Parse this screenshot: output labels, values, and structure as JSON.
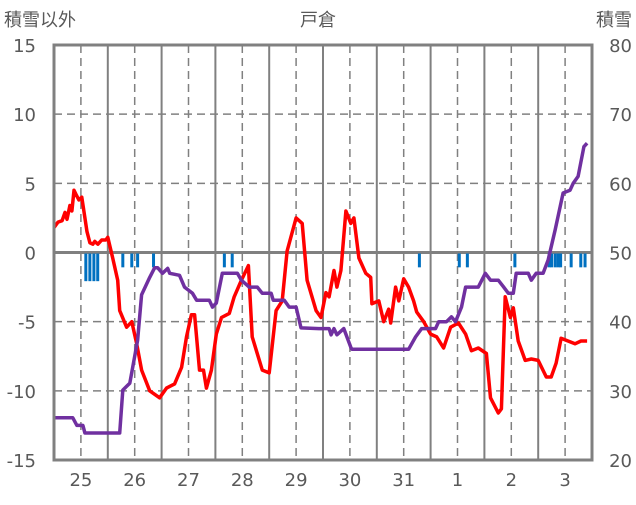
{
  "chart_data": {
    "type": "line",
    "title": "戸倉",
    "ylabel_left": "積雪以外",
    "ylabel_right": "積雪",
    "ylim_left": [
      -15,
      15
    ],
    "yticks_left": [
      "15",
      "10",
      "5",
      "0",
      "-5",
      "-10",
      "-15"
    ],
    "ylim_right": [
      20,
      80
    ],
    "yticks_right": [
      "80",
      "70",
      "60",
      "50",
      "40",
      "30",
      "20"
    ],
    "xlim_hours": [
      0,
      240
    ],
    "x_tick_labels": [
      "25",
      "26",
      "27",
      "28",
      "29",
      "30",
      "31",
      "1",
      "2",
      "3"
    ],
    "grid": true,
    "colors": {
      "temperature": "#ff0000",
      "snow_depth": "#7030a0",
      "snowfall": "#0070c0",
      "grid": "#808080"
    },
    "series": [
      {
        "name": "temperature",
        "axis": "left",
        "points": [
          [
            0,
            1.8
          ],
          [
            1.8,
            2.2
          ],
          [
            3.6,
            2.3
          ],
          [
            4.9,
            2.9
          ],
          [
            5.8,
            2.4
          ],
          [
            7.1,
            3.4
          ],
          [
            8,
            3.0
          ],
          [
            8.9,
            4.5
          ],
          [
            9.8,
            4.2
          ],
          [
            11.1,
            3.8
          ],
          [
            12.4,
            4.0
          ],
          [
            14.7,
            1.5
          ],
          [
            16,
            0.7
          ],
          [
            17.3,
            0.6
          ],
          [
            18.2,
            0.8
          ],
          [
            19.6,
            0.6
          ],
          [
            21.3,
            0.9
          ],
          [
            23.1,
            0.9
          ],
          [
            24,
            1.1
          ],
          [
            26.2,
            -0.4
          ],
          [
            28.4,
            -2
          ],
          [
            29.3,
            -4.2
          ],
          [
            32.4,
            -5.4
          ],
          [
            34.7,
            -5
          ],
          [
            36.9,
            -6.6
          ],
          [
            39.1,
            -8.5
          ],
          [
            42.7,
            -10
          ],
          [
            47.1,
            -10.5
          ],
          [
            50.2,
            -9.8
          ],
          [
            53.8,
            -9.5
          ],
          [
            56.9,
            -8.3
          ],
          [
            59.1,
            -6.1
          ],
          [
            61.3,
            -4.5
          ],
          [
            62.7,
            -4.5
          ],
          [
            64.9,
            -8.5
          ],
          [
            66.7,
            -8.5
          ],
          [
            68,
            -9.8
          ],
          [
            70.2,
            -8.5
          ],
          [
            72.4,
            -5.9
          ],
          [
            74.7,
            -4.7
          ],
          [
            78.2,
            -4.4
          ],
          [
            80.4,
            -3.2
          ],
          [
            83.6,
            -2
          ],
          [
            86.7,
            -0.95
          ],
          [
            88.4,
            -6.1
          ],
          [
            92.9,
            -8.5
          ],
          [
            96,
            -8.7
          ],
          [
            99.1,
            -4.2
          ],
          [
            101.8,
            -3.5
          ],
          [
            104,
            0.1
          ],
          [
            108,
            2.5
          ],
          [
            110.7,
            2.1
          ],
          [
            112.9,
            -2
          ],
          [
            116.9,
            -4.2
          ],
          [
            119.1,
            -4.7
          ],
          [
            121.3,
            -2.9
          ],
          [
            122.7,
            -3.2
          ],
          [
            124.9,
            -1.3
          ],
          [
            126.2,
            -2.5
          ],
          [
            128,
            -1.3
          ],
          [
            130.2,
            3.0
          ],
          [
            132.4,
            2.1
          ],
          [
            133.8,
            2.5
          ],
          [
            136,
            -0.4
          ],
          [
            139.1,
            -1.5
          ],
          [
            141.3,
            -1.8
          ],
          [
            141.8,
            -3.7
          ],
          [
            144.9,
            -3.5
          ],
          [
            147.1,
            -5
          ],
          [
            149.3,
            -4.1
          ],
          [
            150.2,
            -5.1
          ],
          [
            152.4,
            -2.5
          ],
          [
            153.8,
            -3.5
          ],
          [
            156,
            -1.9
          ],
          [
            158.2,
            -2.5
          ],
          [
            160.4,
            -3.5
          ],
          [
            161.8,
            -4.3
          ],
          [
            164.9,
            -5
          ],
          [
            168,
            -5.9
          ],
          [
            170.7,
            -6.1
          ],
          [
            173.8,
            -6.9
          ],
          [
            176.9,
            -5.4
          ],
          [
            180.4,
            -5.1
          ],
          [
            183.6,
            -5.9
          ],
          [
            186.2,
            -7.1
          ],
          [
            189.3,
            -6.9
          ],
          [
            192.9,
            -7.3
          ],
          [
            194.7,
            -10.5
          ],
          [
            198.2,
            -11.6
          ],
          [
            199.6,
            -11.3
          ],
          [
            201.3,
            -3.2
          ],
          [
            203.6,
            -4.7
          ],
          [
            204.9,
            -4
          ],
          [
            207.1,
            -6.4
          ],
          [
            210.2,
            -7.8
          ],
          [
            212.9,
            -7.7
          ],
          [
            216,
            -7.8
          ],
          [
            219.6,
            -9
          ],
          [
            221.8,
            -9
          ],
          [
            224,
            -8
          ],
          [
            226.2,
            -6.2
          ],
          [
            229.3,
            -6.4
          ],
          [
            232.4,
            -6.6
          ],
          [
            235.1,
            -6.4
          ],
          [
            237.8,
            -6.4
          ]
        ]
      },
      {
        "name": "snow_depth",
        "axis": "right",
        "points": [
          [
            0,
            26.1
          ],
          [
            8.4,
            26.1
          ],
          [
            10.2,
            25
          ],
          [
            12.9,
            25
          ],
          [
            13.8,
            23.9
          ],
          [
            29.3,
            23.9
          ],
          [
            30.7,
            30.1
          ],
          [
            33.8,
            31.1
          ],
          [
            35.1,
            33.4
          ],
          [
            37.3,
            37.3
          ],
          [
            39.1,
            43.9
          ],
          [
            42.7,
            46.4
          ],
          [
            44.9,
            47.8
          ],
          [
            46.2,
            47.8
          ],
          [
            48.4,
            47
          ],
          [
            50.7,
            47.7
          ],
          [
            51.6,
            47
          ],
          [
            56,
            46.7
          ],
          [
            58.2,
            45
          ],
          [
            61.8,
            44.1
          ],
          [
            63.6,
            43.1
          ],
          [
            69.3,
            43.1
          ],
          [
            70.7,
            42.1
          ],
          [
            72.4,
            42.7
          ],
          [
            75.1,
            47
          ],
          [
            81.8,
            47
          ],
          [
            83.6,
            46
          ],
          [
            87.1,
            45
          ],
          [
            90.7,
            45
          ],
          [
            92.9,
            44.1
          ],
          [
            96.9,
            44.1
          ],
          [
            97.8,
            43.1
          ],
          [
            102.7,
            43.1
          ],
          [
            104.9,
            42.1
          ],
          [
            108,
            42.1
          ],
          [
            110.2,
            39.1
          ],
          [
            118.2,
            39
          ],
          [
            122.7,
            39
          ],
          [
            123.6,
            38.1
          ],
          [
            124.9,
            39
          ],
          [
            126.2,
            38.1
          ],
          [
            129.3,
            39
          ],
          [
            132.4,
            36.3
          ],
          [
            132.9,
            36
          ],
          [
            158.2,
            36
          ],
          [
            161.3,
            37.8
          ],
          [
            164,
            39
          ],
          [
            170.2,
            39
          ],
          [
            171.6,
            40
          ],
          [
            175.1,
            40
          ],
          [
            177.3,
            40.7
          ],
          [
            179.1,
            40
          ],
          [
            181.8,
            42.1
          ],
          [
            183.6,
            45
          ],
          [
            189.3,
            45
          ],
          [
            192.4,
            47
          ],
          [
            194.7,
            46
          ],
          [
            198.2,
            46
          ],
          [
            200.4,
            45.1
          ],
          [
            202.7,
            44.1
          ],
          [
            204.9,
            44.1
          ],
          [
            206.2,
            47
          ],
          [
            211.6,
            47
          ],
          [
            212.9,
            46
          ],
          [
            215.1,
            47
          ],
          [
            218.2,
            47
          ],
          [
            220.4,
            48.9
          ],
          [
            223.6,
            53.3
          ],
          [
            227.1,
            58.6
          ],
          [
            230.2,
            59
          ],
          [
            231.6,
            60
          ],
          [
            233.8,
            61
          ],
          [
            236.4,
            65.3
          ],
          [
            237.8,
            65.8
          ]
        ]
      },
      {
        "name": "snowfall",
        "axis": "left",
        "type": "bar-down",
        "points": [
          [
            14.2,
            2
          ],
          [
            16,
            2
          ],
          [
            17.8,
            2
          ],
          [
            19.5,
            2
          ],
          [
            30.7,
            1
          ],
          [
            34.7,
            1
          ],
          [
            37.3,
            1
          ],
          [
            44.4,
            1
          ],
          [
            76,
            1
          ],
          [
            79.5,
            1
          ],
          [
            163,
            1
          ],
          [
            180.8,
            1
          ],
          [
            184.4,
            1
          ],
          [
            205.6,
            1
          ],
          [
            220.9,
            1
          ],
          [
            222,
            1
          ],
          [
            223.6,
            1
          ],
          [
            224.9,
            1
          ],
          [
            226,
            1
          ],
          [
            230.7,
            1
          ],
          [
            235,
            1
          ],
          [
            236.9,
            1
          ]
        ]
      }
    ]
  }
}
